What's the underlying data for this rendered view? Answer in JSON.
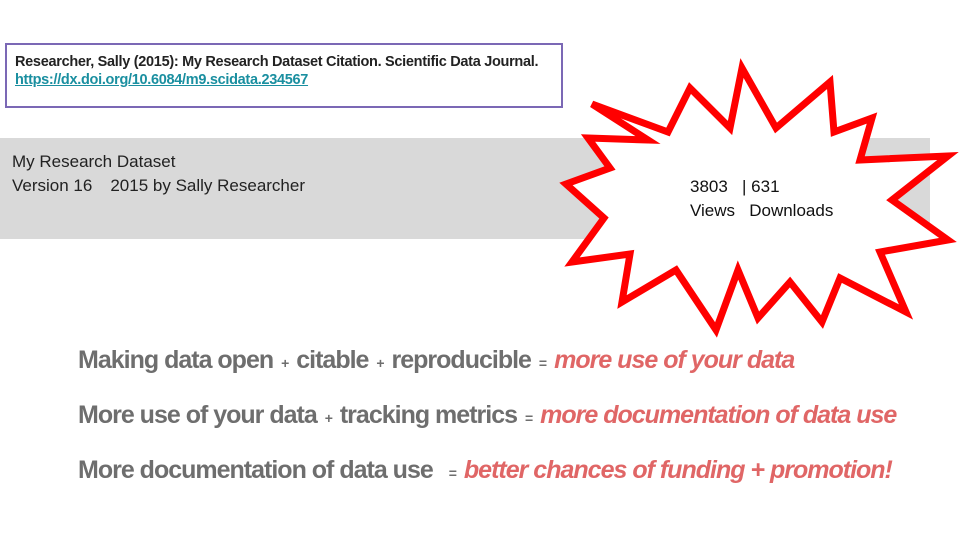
{
  "citation": {
    "text": "Researcher, Sally (2015): My Research Dataset Citation. Scientific Data Journal.",
    "link": "https://dx.doi.org/10.6084/m9.scidata.234567"
  },
  "dataset": {
    "title": "My Research Dataset",
    "version": "Version 16",
    "year_by": "2015 by Sally Researcher"
  },
  "metrics": {
    "views_count": "3803",
    "separator": "|",
    "downloads_count": "631",
    "views_label": "Views",
    "downloads_label": "Downloads"
  },
  "equations": [
    {
      "parts": [
        "Making data open",
        "citable",
        "reproducible"
      ],
      "result": "more use of your data"
    },
    {
      "parts": [
        "More use of your data",
        "tracking metrics"
      ],
      "result": "more documentation of data use"
    },
    {
      "parts": [
        "More documentation of data use"
      ],
      "result": "better chances of funding + promotion!"
    }
  ],
  "colors": {
    "citation_border": "#7b68b5",
    "link": "#1a8fa0",
    "bar_background": "#d9d9d9",
    "burst_outline": "#ff0000",
    "equation_text": "#6e6e6e",
    "equation_result": "#e06666"
  }
}
